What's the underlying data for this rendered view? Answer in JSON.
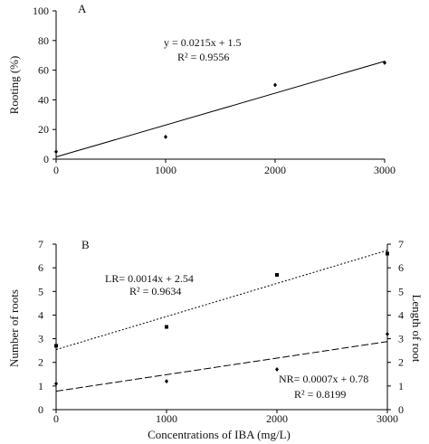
{
  "chart_data": [
    {
      "type": "scatter",
      "panel_label": "A",
      "ylabel": "Rooting (%)",
      "xlabel": "",
      "xlim": [
        0,
        3000
      ],
      "ylim": [
        0,
        100
      ],
      "xticks": [
        "0",
        "1000",
        "2000",
        "3000"
      ],
      "yticks": [
        "0",
        "20",
        "40",
        "60",
        "80",
        "100"
      ],
      "series": [
        {
          "x": [
            0,
            1000,
            2000,
            3000
          ],
          "y": [
            5,
            15,
            50,
            65
          ],
          "marker": "diamond",
          "trendline": {
            "slope": 0.0215,
            "intercept": 1.5,
            "style": "solid"
          }
        }
      ],
      "annotations": {
        "equation": "y = 0.0215x + 1.5",
        "r2": "R² = 0.9556"
      }
    },
    {
      "type": "scatter",
      "panel_label": "B",
      "xlabel": "Concentrations of IBA (mg/L)",
      "ylabel": "Number of roots",
      "y2label": "Length of root",
      "xlim": [
        0,
        3000
      ],
      "ylim": [
        0,
        7
      ],
      "y2lim": [
        0,
        7
      ],
      "xticks": [
        "0",
        "1000",
        "2000",
        "3000"
      ],
      "yticks": [
        "0",
        "1",
        "2",
        "3",
        "4",
        "5",
        "6",
        "7"
      ],
      "series": [
        {
          "key": "LR",
          "x": [
            0,
            1000,
            2000,
            3000
          ],
          "y": [
            2.7,
            3.5,
            5.7,
            6.6
          ],
          "marker": "square",
          "trendline": {
            "slope": 0.0014,
            "intercept": 2.54,
            "style": "dotted"
          }
        },
        {
          "key": "NR",
          "x": [
            0,
            1000,
            2000,
            3000
          ],
          "y": [
            1.1,
            1.2,
            1.7,
            3.2
          ],
          "marker": "diamond",
          "trendline": {
            "slope": 0.0007,
            "intercept": 0.78,
            "style": "dashed"
          }
        }
      ],
      "annotations": {
        "lr_equation": "LR= 0.0014x + 2.54",
        "lr_r2": "R² = 0.9634",
        "nr_equation": "NR= 0.0007x + 0.78",
        "nr_r2": "R² = 0.8199"
      }
    }
  ]
}
